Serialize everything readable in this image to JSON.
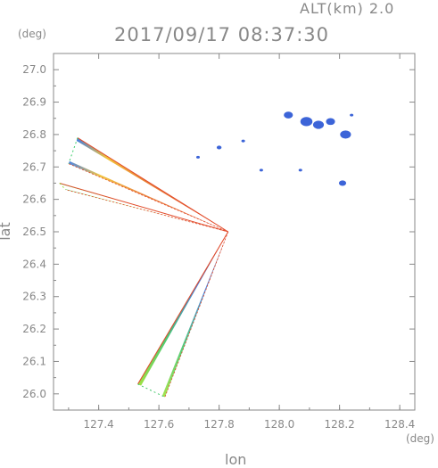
{
  "chart_data": {
    "type": "scatter",
    "altitude_label": "ALT(km) 2.0",
    "timestamp": "2017/09/17 08:37:30",
    "xlabel": "lon",
    "ylabel": "lat",
    "x_unit": "(deg)",
    "y_unit": "(deg)",
    "xlim": [
      127.25,
      128.45
    ],
    "ylim": [
      25.95,
      27.05
    ],
    "x_ticks": [
      "127.4",
      "127.6",
      "127.8",
      "128.0",
      "128.2",
      "128.4"
    ],
    "y_ticks": [
      "26.0",
      "26.1",
      "26.2",
      "26.3",
      "26.4",
      "26.5",
      "26.6",
      "26.7",
      "26.8",
      "26.9",
      "27.0"
    ],
    "radar_site": {
      "lon": 127.83,
      "lat": 26.5
    },
    "scan_wedges": [
      {
        "name": "wedge-upper",
        "edge_left": {
          "lon": 127.33,
          "lat": 26.79
        },
        "edge_right": {
          "lon": 127.3,
          "lat": 26.71
        },
        "near": "#e24a2a",
        "far_outer": "#3c78dc",
        "mid": "#3ccf6b"
      },
      {
        "name": "wedge-lower-left",
        "edge_left": {
          "lon": 127.27,
          "lat": 26.65
        },
        "edge_right": {
          "lon": 127.29,
          "lat": 26.63
        },
        "near": "#e24a2a",
        "far_outer": "#4ccf4c",
        "mid": "#9adf3c"
      },
      {
        "name": "wedge-south",
        "edge_left": {
          "lon": 127.53,
          "lat": 26.03
        },
        "edge_right": {
          "lon": 127.62,
          "lat": 25.99
        },
        "near": "#e24a2a",
        "far_outer": "#3c78dc",
        "mid": "#43c76b"
      }
    ],
    "echo_cells": [
      {
        "lon": 128.03,
        "lat": 26.86,
        "size": 0.015
      },
      {
        "lon": 128.09,
        "lat": 26.84,
        "size": 0.02
      },
      {
        "lon": 128.13,
        "lat": 26.83,
        "size": 0.018
      },
      {
        "lon": 128.17,
        "lat": 26.84,
        "size": 0.015
      },
      {
        "lon": 128.22,
        "lat": 26.8,
        "size": 0.018
      },
      {
        "lon": 128.21,
        "lat": 26.65,
        "size": 0.012
      },
      {
        "lon": 127.8,
        "lat": 26.76,
        "size": 0.008
      },
      {
        "lon": 127.88,
        "lat": 26.78,
        "size": 0.006
      },
      {
        "lon": 127.94,
        "lat": 26.69,
        "size": 0.006
      },
      {
        "lon": 128.07,
        "lat": 26.69,
        "size": 0.006
      },
      {
        "lon": 128.24,
        "lat": 26.86,
        "size": 0.005
      },
      {
        "lon": 127.73,
        "lat": 26.73,
        "size": 0.006
      }
    ],
    "colors": {
      "axis": "#888888",
      "text": "#888888",
      "echo": "#3c64d8"
    },
    "grid": false
  }
}
